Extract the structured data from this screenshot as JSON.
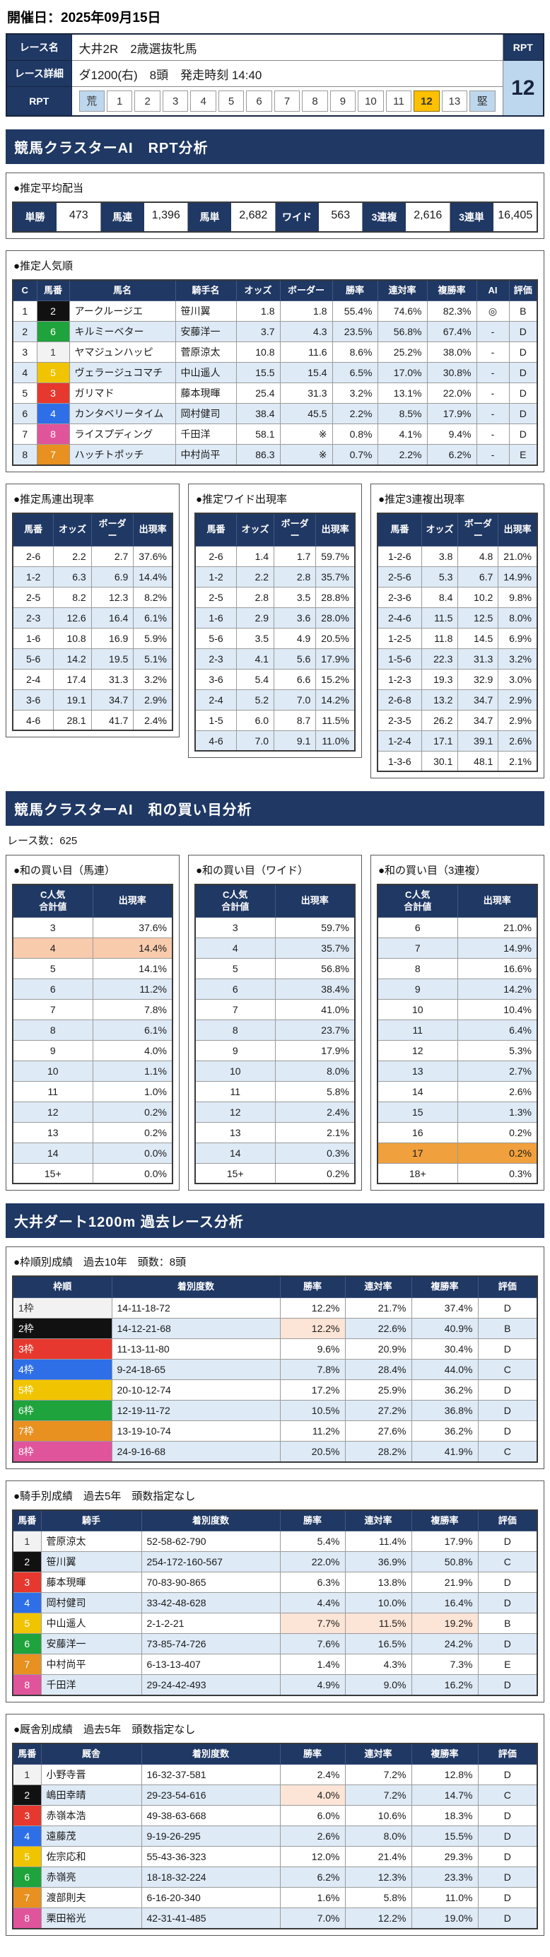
{
  "page": {
    "date_label": "開催日：2025年09月15日"
  },
  "colors": {
    "navy": "#1F3864",
    "row_alt": "#DEEAF6",
    "scale_edge": "#BDD7EE",
    "scale_selected": "#FFC000",
    "rpt_value_bg": "#BDD7EE",
    "highlight_peach": "#FCE4D6",
    "highlight_orange_light": "#F8CBAD",
    "highlight_orange": "#F0A03C",
    "waku": {
      "1": "#F2F2F2",
      "2": "#111111",
      "3": "#E6382E",
      "4": "#2E6FE8",
      "5": "#F0C400",
      "6": "#1FA33C",
      "7": "#E89020",
      "8": "#E0549B"
    }
  },
  "race_info": {
    "name_label": "レース名",
    "name": "大井2R　2歳選抜牝馬",
    "detail_label": "レース詳細",
    "detail": "ダ1200(右)　8頭　発走時刻 14:40",
    "rpt_label": "RPT",
    "rpt_value": "12",
    "scale": [
      "荒",
      "1",
      "2",
      "3",
      "4",
      "5",
      "6",
      "7",
      "8",
      "9",
      "10",
      "11",
      "12",
      "13",
      "堅"
    ],
    "scale_selected": "12"
  },
  "sections": {
    "rpt": "競馬クラスターAI　RPT分析",
    "wa": "競馬クラスターAI　和の買い目分析",
    "past": "大井ダート1200m 過去レース分析"
  },
  "payout": {
    "title": "●推定平均配当",
    "items": [
      {
        "label": "単勝",
        "value": "473"
      },
      {
        "label": "馬連",
        "value": "1,396"
      },
      {
        "label": "馬単",
        "value": "2,682"
      },
      {
        "label": "ワイド",
        "value": "563"
      },
      {
        "label": "3連複",
        "value": "2,616"
      },
      {
        "label": "3連単",
        "value": "16,405"
      }
    ]
  },
  "popularity": {
    "title": "●推定人気順",
    "headers": [
      "C",
      "馬番",
      "馬名",
      "騎手名",
      "オッズ",
      "ボーダー",
      "勝率",
      "連対率",
      "複勝率",
      "AI",
      "評価"
    ],
    "rows": [
      {
        "c": "1",
        "num": {
          "v": "2",
          "waku": "2"
        },
        "name": "アークルージエ",
        "jockey": "笹川翼",
        "odds": "1.8",
        "border": "1.8",
        "win": "55.4%",
        "ren": "74.6%",
        "fuku": "82.3%",
        "ai": "◎",
        "rating": "B"
      },
      {
        "c": "2",
        "num": {
          "v": "6",
          "waku": "6"
        },
        "name": "キルミーベター",
        "jockey": "安藤洋一",
        "odds": "3.7",
        "border": "4.3",
        "win": "23.5%",
        "ren": "56.8%",
        "fuku": "67.4%",
        "ai": "-",
        "rating": "D"
      },
      {
        "c": "3",
        "num": {
          "v": "1",
          "waku": "1"
        },
        "name": "ヤマジュンハッピ",
        "jockey": "菅原涼太",
        "odds": "10.8",
        "border": "11.6",
        "win": "8.6%",
        "ren": "25.2%",
        "fuku": "38.0%",
        "ai": "-",
        "rating": "D"
      },
      {
        "c": "4",
        "num": {
          "v": "5",
          "waku": "5"
        },
        "name": "ヴェラージュコマチ",
        "jockey": "中山遥人",
        "odds": "15.5",
        "border": "15.4",
        "win": "6.5%",
        "ren": "17.0%",
        "fuku": "30.8%",
        "ai": "-",
        "rating": "D"
      },
      {
        "c": "5",
        "num": {
          "v": "3",
          "waku": "3"
        },
        "name": "ガリマド",
        "jockey": "藤本現暉",
        "odds": "25.4",
        "border": "31.3",
        "win": "3.2%",
        "ren": "13.1%",
        "fuku": "22.0%",
        "ai": "-",
        "rating": "D"
      },
      {
        "c": "6",
        "num": {
          "v": "4",
          "waku": "4"
        },
        "name": "カンタベリータイム",
        "jockey": "岡村健司",
        "odds": "38.4",
        "border": "45.5",
        "win": "2.2%",
        "ren": "8.5%",
        "fuku": "17.9%",
        "ai": "-",
        "rating": "D"
      },
      {
        "c": "7",
        "num": {
          "v": "8",
          "waku": "8"
        },
        "name": "ライスプディング",
        "jockey": "千田洋",
        "odds": "58.1",
        "border": "※",
        "win": "0.8%",
        "ren": "4.1%",
        "fuku": "9.4%",
        "ai": "-",
        "rating": "D"
      },
      {
        "c": "8",
        "num": {
          "v": "7",
          "waku": "7"
        },
        "name": "ハッチトポッチ",
        "jockey": "中村尚平",
        "odds": "86.3",
        "border": "※",
        "win": "0.7%",
        "ren": "2.2%",
        "fuku": "6.2%",
        "ai": "-",
        "rating": "E"
      }
    ]
  },
  "occurrence": {
    "umaren": {
      "title": "●推定馬連出現率",
      "headers": [
        "馬番",
        "オッズ",
        "ボーダー",
        "出現率"
      ],
      "rows": [
        {
          "pair": "2-6",
          "odds": "2.2",
          "border": "2.7",
          "rate": "37.6%"
        },
        {
          "pair": "1-2",
          "odds": "6.3",
          "border": "6.9",
          "rate": "14.4%"
        },
        {
          "pair": "2-5",
          "odds": "8.2",
          "border": "12.3",
          "rate": "8.2%"
        },
        {
          "pair": "2-3",
          "odds": "12.6",
          "border": "16.4",
          "rate": "6.1%"
        },
        {
          "pair": "1-6",
          "odds": "10.8",
          "border": "16.9",
          "rate": "5.9%"
        },
        {
          "pair": "5-6",
          "odds": "14.2",
          "border": "19.5",
          "rate": "5.1%"
        },
        {
          "pair": "2-4",
          "odds": "17.4",
          "border": "31.3",
          "rate": "3.2%"
        },
        {
          "pair": "3-6",
          "odds": "19.1",
          "border": "34.7",
          "rate": "2.9%"
        },
        {
          "pair": "4-6",
          "odds": "28.1",
          "border": "41.7",
          "rate": "2.4%"
        }
      ]
    },
    "wide": {
      "title": "●推定ワイド出現率",
      "headers": [
        "馬番",
        "オッズ",
        "ボーダー",
        "出現率"
      ],
      "rows": [
        {
          "pair": "2-6",
          "odds": "1.4",
          "border": "1.7",
          "rate": "59.7%"
        },
        {
          "pair": "1-2",
          "odds": "2.2",
          "border": "2.8",
          "rate": "35.7%"
        },
        {
          "pair": "2-5",
          "odds": "2.8",
          "border": "3.5",
          "rate": "28.8%"
        },
        {
          "pair": "1-6",
          "odds": "2.9",
          "border": "3.6",
          "rate": "28.0%"
        },
        {
          "pair": "5-6",
          "odds": "3.5",
          "border": "4.9",
          "rate": "20.5%"
        },
        {
          "pair": "2-3",
          "odds": "4.1",
          "border": "5.6",
          "rate": "17.9%"
        },
        {
          "pair": "3-6",
          "odds": "5.4",
          "border": "6.6",
          "rate": "15.2%"
        },
        {
          "pair": "2-4",
          "odds": "5.2",
          "border": "7.0",
          "rate": "14.2%"
        },
        {
          "pair": "1-5",
          "odds": "6.0",
          "border": "8.7",
          "rate": "11.5%"
        },
        {
          "pair": "4-6",
          "odds": "7.0",
          "border": "9.1",
          "rate": "11.0%"
        }
      ]
    },
    "sanrenpuku": {
      "title": "●推定3連複出現率",
      "headers": [
        "馬番",
        "オッズ",
        "ボーダー",
        "出現率"
      ],
      "rows": [
        {
          "pair": "1-2-6",
          "odds": "3.8",
          "border": "4.8",
          "rate": "21.0%"
        },
        {
          "pair": "2-5-6",
          "odds": "5.3",
          "border": "6.7",
          "rate": "14.9%"
        },
        {
          "pair": "2-3-6",
          "odds": "8.4",
          "border": "10.2",
          "rate": "9.8%"
        },
        {
          "pair": "2-4-6",
          "odds": "11.5",
          "border": "12.5",
          "rate": "8.0%"
        },
        {
          "pair": "1-2-5",
          "odds": "11.8",
          "border": "14.5",
          "rate": "6.9%"
        },
        {
          "pair": "1-5-6",
          "odds": "22.3",
          "border": "31.3",
          "rate": "3.2%"
        },
        {
          "pair": "1-2-3",
          "odds": "19.3",
          "border": "32.9",
          "rate": "3.0%"
        },
        {
          "pair": "2-6-8",
          "odds": "13.2",
          "border": "34.7",
          "rate": "2.9%"
        },
        {
          "pair": "2-3-5",
          "odds": "26.2",
          "border": "34.7",
          "rate": "2.9%"
        },
        {
          "pair": "1-2-4",
          "odds": "17.1",
          "border": "39.1",
          "rate": "2.6%"
        },
        {
          "pair": "1-3-6",
          "odds": "30.1",
          "border": "48.1",
          "rate": "2.1%"
        }
      ]
    }
  },
  "wa": {
    "race_count_label": "レース数：625",
    "umaren": {
      "title": "●和の買い目（馬連）",
      "headers": [
        "C人気\n合計値",
        "出現率"
      ],
      "rows": [
        {
          "sum": "3",
          "rate": "37.6%"
        },
        {
          "sum": "4",
          "rate": "14.4%",
          "row_hl": "highlight_orange_light"
        },
        {
          "sum": "5",
          "rate": "14.1%"
        },
        {
          "sum": "6",
          "rate": "11.2%"
        },
        {
          "sum": "7",
          "rate": "7.8%"
        },
        {
          "sum": "8",
          "rate": "6.1%"
        },
        {
          "sum": "9",
          "rate": "4.0%"
        },
        {
          "sum": "10",
          "rate": "1.1%"
        },
        {
          "sum": "11",
          "rate": "1.0%"
        },
        {
          "sum": "12",
          "rate": "0.2%"
        },
        {
          "sum": "13",
          "rate": "0.2%"
        },
        {
          "sum": "14",
          "rate": "0.0%"
        },
        {
          "sum": "15+",
          "rate": "0.0%"
        }
      ]
    },
    "wide": {
      "title": "●和の買い目（ワイド）",
      "headers": [
        "C人気\n合計値",
        "出現率"
      ],
      "rows": [
        {
          "sum": "3",
          "rate": "59.7%"
        },
        {
          "sum": "4",
          "rate": "35.7%"
        },
        {
          "sum": "5",
          "rate": "56.8%"
        },
        {
          "sum": "6",
          "rate": "38.4%"
        },
        {
          "sum": "7",
          "rate": "41.0%"
        },
        {
          "sum": "8",
          "rate": "23.7%"
        },
        {
          "sum": "9",
          "rate": "17.9%"
        },
        {
          "sum": "10",
          "rate": "8.0%"
        },
        {
          "sum": "11",
          "rate": "5.8%"
        },
        {
          "sum": "12",
          "rate": "2.4%"
        },
        {
          "sum": "13",
          "rate": "2.1%"
        },
        {
          "sum": "14",
          "rate": "0.3%"
        },
        {
          "sum": "15+",
          "rate": "0.2%"
        }
      ]
    },
    "sanrenpuku": {
      "title": "●和の買い目（3連複）",
      "headers": [
        "C人気\n合計値",
        "出現率"
      ],
      "rows": [
        {
          "sum": "6",
          "rate": "21.0%"
        },
        {
          "sum": "7",
          "rate": "14.9%"
        },
        {
          "sum": "8",
          "rate": "16.6%"
        },
        {
          "sum": "9",
          "rate": "14.2%"
        },
        {
          "sum": "10",
          "rate": "10.4%"
        },
        {
          "sum": "11",
          "rate": "6.4%"
        },
        {
          "sum": "12",
          "rate": "5.3%"
        },
        {
          "sum": "13",
          "rate": "2.7%"
        },
        {
          "sum": "14",
          "rate": "2.6%"
        },
        {
          "sum": "15",
          "rate": "1.3%"
        },
        {
          "sum": "16",
          "rate": "0.2%"
        },
        {
          "sum": "17",
          "rate": "0.2%",
          "row_hl": "highlight_orange"
        },
        {
          "sum": "18+",
          "rate": "0.3%"
        }
      ]
    }
  },
  "past": {
    "waku": {
      "title": "●枠順別成績　過去10年　頭数：8頭",
      "headers": [
        "枠順",
        "着別度数",
        "勝率",
        "連対率",
        "複勝率",
        "評価"
      ],
      "rows": [
        {
          "wname": {
            "v": "1枠",
            "waku": "1"
          },
          "record": "14-11-18-72",
          "win": "12.2%",
          "ren": "21.7%",
          "fuku": "37.4%",
          "rating": "D"
        },
        {
          "wname": {
            "v": "2枠",
            "waku": "2"
          },
          "record": "14-12-21-68",
          "win": {
            "v": "12.2%",
            "hl": "highlight_peach"
          },
          "ren": "22.6%",
          "fuku": "40.9%",
          "rating": "B"
        },
        {
          "wname": {
            "v": "3枠",
            "waku": "3"
          },
          "record": "11-13-11-80",
          "win": "9.6%",
          "ren": "20.9%",
          "fuku": "30.4%",
          "rating": "D"
        },
        {
          "wname": {
            "v": "4枠",
            "waku": "4"
          },
          "record": "9-24-18-65",
          "win": "7.8%",
          "ren": "28.4%",
          "fuku": "44.0%",
          "rating": "C"
        },
        {
          "wname": {
            "v": "5枠",
            "waku": "5"
          },
          "record": "20-10-12-74",
          "win": "17.2%",
          "ren": "25.9%",
          "fuku": "36.2%",
          "rating": "D"
        },
        {
          "wname": {
            "v": "6枠",
            "waku": "6"
          },
          "record": "12-19-11-72",
          "win": "10.5%",
          "ren": "27.2%",
          "fuku": "36.8%",
          "rating": "D"
        },
        {
          "wname": {
            "v": "7枠",
            "waku": "7"
          },
          "record": "13-19-10-74",
          "win": "11.2%",
          "ren": "27.6%",
          "fuku": "36.2%",
          "rating": "D"
        },
        {
          "wname": {
            "v": "8枠",
            "waku": "8"
          },
          "record": "24-9-16-68",
          "win": "20.5%",
          "ren": "28.2%",
          "fuku": "41.9%",
          "rating": "C"
        }
      ]
    },
    "jockey": {
      "title": "●騎手別成績　過去5年　頭数指定なし",
      "headers": [
        "馬番",
        "騎手",
        "着別度数",
        "勝率",
        "連対率",
        "複勝率",
        "評価"
      ],
      "rows": [
        {
          "num": {
            "v": "1",
            "waku": "1"
          },
          "name": "菅原涼太",
          "record": "52-58-62-790",
          "win": "5.4%",
          "ren": "11.4%",
          "fuku": "17.9%",
          "rating": "D"
        },
        {
          "num": {
            "v": "2",
            "waku": "2"
          },
          "name": "笹川翼",
          "record": "254-172-160-567",
          "win": "22.0%",
          "ren": "36.9%",
          "fuku": "50.8%",
          "rating": "C"
        },
        {
          "num": {
            "v": "3",
            "waku": "3"
          },
          "name": "藤本現暉",
          "record": "70-83-90-865",
          "win": "6.3%",
          "ren": "13.8%",
          "fuku": "21.9%",
          "rating": "D"
        },
        {
          "num": {
            "v": "4",
            "waku": "4"
          },
          "name": "岡村健司",
          "record": "33-42-48-628",
          "win": "4.4%",
          "ren": "10.0%",
          "fuku": "16.4%",
          "rating": "D"
        },
        {
          "num": {
            "v": "5",
            "waku": "5"
          },
          "name": "中山遥人",
          "record": "2-1-2-21",
          "win": {
            "v": "7.7%",
            "hl": "highlight_peach"
          },
          "ren": {
            "v": "11.5%",
            "hl": "highlight_peach"
          },
          "fuku": {
            "v": "19.2%",
            "hl": "highlight_peach"
          },
          "rating": "B"
        },
        {
          "num": {
            "v": "6",
            "waku": "6"
          },
          "name": "安藤洋一",
          "record": "73-85-74-726",
          "win": "7.6%",
          "ren": "16.5%",
          "fuku": "24.2%",
          "rating": "D"
        },
        {
          "num": {
            "v": "7",
            "waku": "7"
          },
          "name": "中村尚平",
          "record": "6-13-13-407",
          "win": "1.4%",
          "ren": "4.3%",
          "fuku": "7.3%",
          "rating": "E"
        },
        {
          "num": {
            "v": "8",
            "waku": "8"
          },
          "name": "千田洋",
          "record": "29-24-42-493",
          "win": "4.9%",
          "ren": "9.0%",
          "fuku": "16.2%",
          "rating": "D"
        }
      ]
    },
    "stable": {
      "title": "●厩舎別成績　過去5年　頭数指定なし",
      "headers": [
        "馬番",
        "厩舎",
        "着別度数",
        "勝率",
        "連対率",
        "複勝率",
        "評価"
      ],
      "rows": [
        {
          "num": {
            "v": "1",
            "waku": "1"
          },
          "name": "小野寺晋",
          "record": "16-32-37-581",
          "win": "2.4%",
          "ren": "7.2%",
          "fuku": "12.8%",
          "rating": "D"
        },
        {
          "num": {
            "v": "2",
            "waku": "2"
          },
          "name": "嶋田幸晴",
          "record": "29-23-54-616",
          "win": {
            "v": "4.0%",
            "hl": "highlight_peach"
          },
          "ren": "7.2%",
          "fuku": "14.7%",
          "rating": "C"
        },
        {
          "num": {
            "v": "3",
            "waku": "3"
          },
          "name": "赤嶺本浩",
          "record": "49-38-63-668",
          "win": "6.0%",
          "ren": "10.6%",
          "fuku": "18.3%",
          "rating": "D"
        },
        {
          "num": {
            "v": "4",
            "waku": "4"
          },
          "name": "遠藤茂",
          "record": "9-19-26-295",
          "win": "2.6%",
          "ren": "8.0%",
          "fuku": "15.5%",
          "rating": "D"
        },
        {
          "num": {
            "v": "5",
            "waku": "5"
          },
          "name": "佐宗応和",
          "record": "55-43-36-323",
          "win": "12.0%",
          "ren": "21.4%",
          "fuku": "29.3%",
          "rating": "D"
        },
        {
          "num": {
            "v": "6",
            "waku": "6"
          },
          "name": "赤嶺亮",
          "record": "18-18-32-224",
          "win": "6.2%",
          "ren": "12.3%",
          "fuku": "23.3%",
          "rating": "D"
        },
        {
          "num": {
            "v": "7",
            "waku": "7"
          },
          "name": "渡部則夫",
          "record": "6-16-20-340",
          "win": "1.6%",
          "ren": "5.8%",
          "fuku": "11.0%",
          "rating": "D"
        },
        {
          "num": {
            "v": "8",
            "waku": "8"
          },
          "name": "栗田裕光",
          "record": "42-31-41-485",
          "win": "7.0%",
          "ren": "12.2%",
          "fuku": "19.0%",
          "rating": "D"
        }
      ]
    }
  }
}
